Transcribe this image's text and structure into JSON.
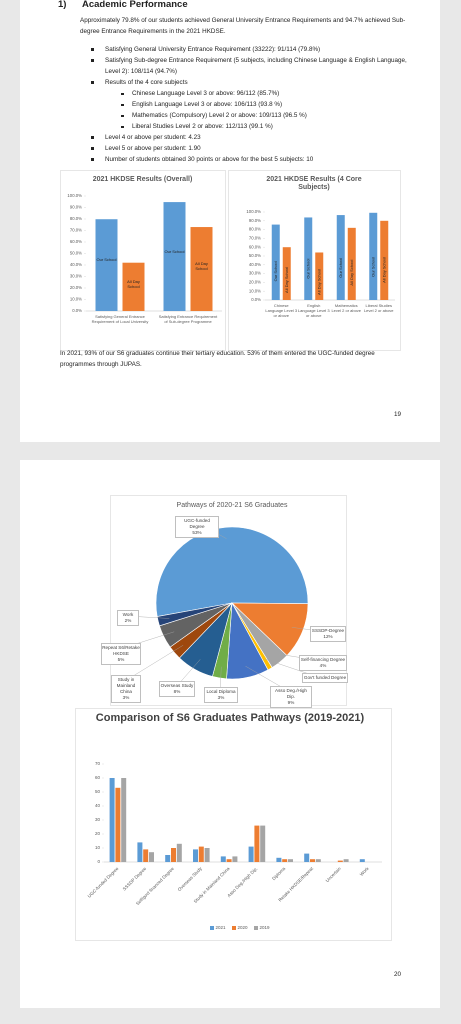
{
  "page1": {
    "heading_number": "1)",
    "heading": "Academic Performance",
    "intro": "Approximately 79.8% of our students achieved General University Entrance Requirements and 94.7% achieved Sub-degree Entrance Requirements in the 2021 HKDSE.",
    "bullets": [
      {
        "text": "Satisfying General University Entrance Requirement (33222): 91/114 (79.8%)"
      },
      {
        "text": "Satisfying Sub-degree Entrance Requirement (5 subjects, including Chinese Language & English Language, Level 2): 108/114 (94.7%)"
      },
      {
        "text": "Results of the 4 core subjects",
        "sub_bullets": [
          "Chinese Language Level 3 or above:  96/112 (85.7%)",
          "English Language Level 3 or above: 106/113 (93.8 %)",
          "Mathematics (Compulsory) Level 2 or above: 109/113 (96.5 %)",
          "Liberal Studies Level 2 or above: 112/113 (99.1 %)"
        ]
      },
      {
        "text": "Level 4 or above per student: 4.23"
      },
      {
        "text": "Level 5 or above per student: 1.90"
      },
      {
        "text": "Number of students obtained 30 points or above for the best 5 subjects: 10"
      }
    ],
    "closing": "In 2021, 93% of our S6 graduates continue their tertiary education.  53% of them entered the UGC-funded degree programmes through JUPAS.",
    "page_number": 19
  },
  "page2": {
    "page_number": 20
  },
  "chart_data": [
    {
      "type": "bar",
      "title": "2021 HKDSE Results (Overall)",
      "categories": [
        "Satisfying General Entrance Requirement of Local University",
        "Satisfying Entrance Requirement of Sub-degree Programme"
      ],
      "series": [
        {
          "name": "Our School",
          "color": "#5b9bd5",
          "values": [
            79.8,
            94.7
          ]
        },
        {
          "name": "All Day School",
          "color": "#ed7d31",
          "values": [
            42,
            73
          ]
        }
      ],
      "ylim": [
        0,
        100
      ],
      "yticks": [
        {
          "value": 0,
          "label": "0.0%"
        },
        {
          "value": 10,
          "label": "10.0%"
        },
        {
          "value": 20,
          "label": "20.0%"
        },
        {
          "value": 30,
          "label": "30.0%"
        },
        {
          "value": 40,
          "label": "40.0%"
        },
        {
          "value": 50,
          "label": "50.0%"
        },
        {
          "value": 60,
          "label": "60.0%"
        },
        {
          "value": 70,
          "label": "70.0%"
        },
        {
          "value": 80,
          "label": "80.0%"
        },
        {
          "value": 90,
          "label": "90.0%"
        },
        {
          "value": 100,
          "label": "100.0%"
        }
      ],
      "grid": false
    },
    {
      "type": "bar",
      "title": "2021 HKDSE Results (4 Core Subjects)",
      "categories": [
        "Chinese Language Level 3 or above",
        "English Language Level 3 or above",
        "Mathematics Level 2 or above",
        "Liberal Studies Level 2 or above"
      ],
      "series": [
        {
          "name": "Our School",
          "color": "#5b9bd5",
          "values": [
            85.7,
            93.8,
            96.5,
            99.1
          ]
        },
        {
          "name": "All Day School",
          "color": "#ed7d31",
          "values": [
            60,
            54,
            82,
            90
          ]
        }
      ],
      "ylim": [
        0,
        100
      ],
      "yticks": [
        {
          "value": 0,
          "label": "0.0%"
        },
        {
          "value": 10,
          "label": "10.0%"
        },
        {
          "value": 20,
          "label": "20.0%"
        },
        {
          "value": 30,
          "label": "30.0%"
        },
        {
          "value": 40,
          "label": "40.0%"
        },
        {
          "value": 50,
          "label": "50.0%"
        },
        {
          "value": 60,
          "label": "60.0%"
        },
        {
          "value": 70,
          "label": "70.0%"
        },
        {
          "value": 80,
          "label": "80.0%"
        },
        {
          "value": 90,
          "label": "90.0%"
        },
        {
          "value": 100,
          "label": "100.0%"
        }
      ],
      "grid": false
    },
    {
      "type": "pie",
      "title": "Pathways of 2020-21 S6 Graduates",
      "categories": [
        "UGC-funded Degree",
        "SSSDP-Degree",
        "Self-financing Degree",
        "Gov't funded Degree",
        "Asso Deg./High Dip.",
        "Local Diploma",
        "Overseas Study",
        "Study in Mainland China",
        "Repeat S6/Retake HKDSE",
        "Work"
      ],
      "values": [
        53,
        12,
        4,
        1,
        9,
        3,
        8,
        3,
        5,
        2
      ],
      "value_labels": [
        "53%",
        "12%",
        "4%",
        null,
        "9%",
        "3%",
        "8%",
        "3%",
        "5%",
        "2%"
      ],
      "colors": [
        "#5b9bd5",
        "#ed7d31",
        "#a5a5a5",
        "#ffc000",
        "#4472c4",
        "#70ad47",
        "#255e91",
        "#9e480e",
        "#636363",
        "#264478"
      ]
    },
    {
      "type": "bar",
      "title": "Comparison of S6 Graduates Pathways (2019-2021)",
      "categories": [
        "UGC-funded Degree",
        "SSSDP Degree",
        "Self/govt financed Degree",
        "Overseas Study",
        "Study in Mainland China",
        "Asso Deg./High Dip.",
        "Diploma",
        "Retake HKDSE/Repeat",
        "Uncertain",
        "Work"
      ],
      "series": [
        {
          "name": "2021",
          "color": "#5b9bd5",
          "values": [
            60,
            14,
            5,
            9,
            4,
            11,
            3,
            6,
            0,
            2
          ]
        },
        {
          "name": "2020",
          "color": "#ed7d31",
          "values": [
            53,
            9,
            10,
            11,
            2,
            26,
            2,
            2,
            1,
            0
          ]
        },
        {
          "name": "2019",
          "color": "#a5a5a5",
          "values": [
            60,
            7,
            13,
            10,
            4,
            26,
            2,
            2,
            2,
            0
          ]
        }
      ],
      "ylim": [
        0,
        70
      ],
      "yticks": [
        0,
        10,
        20,
        30,
        40,
        50,
        60,
        70
      ],
      "grid": false,
      "legend": "bottom"
    }
  ]
}
